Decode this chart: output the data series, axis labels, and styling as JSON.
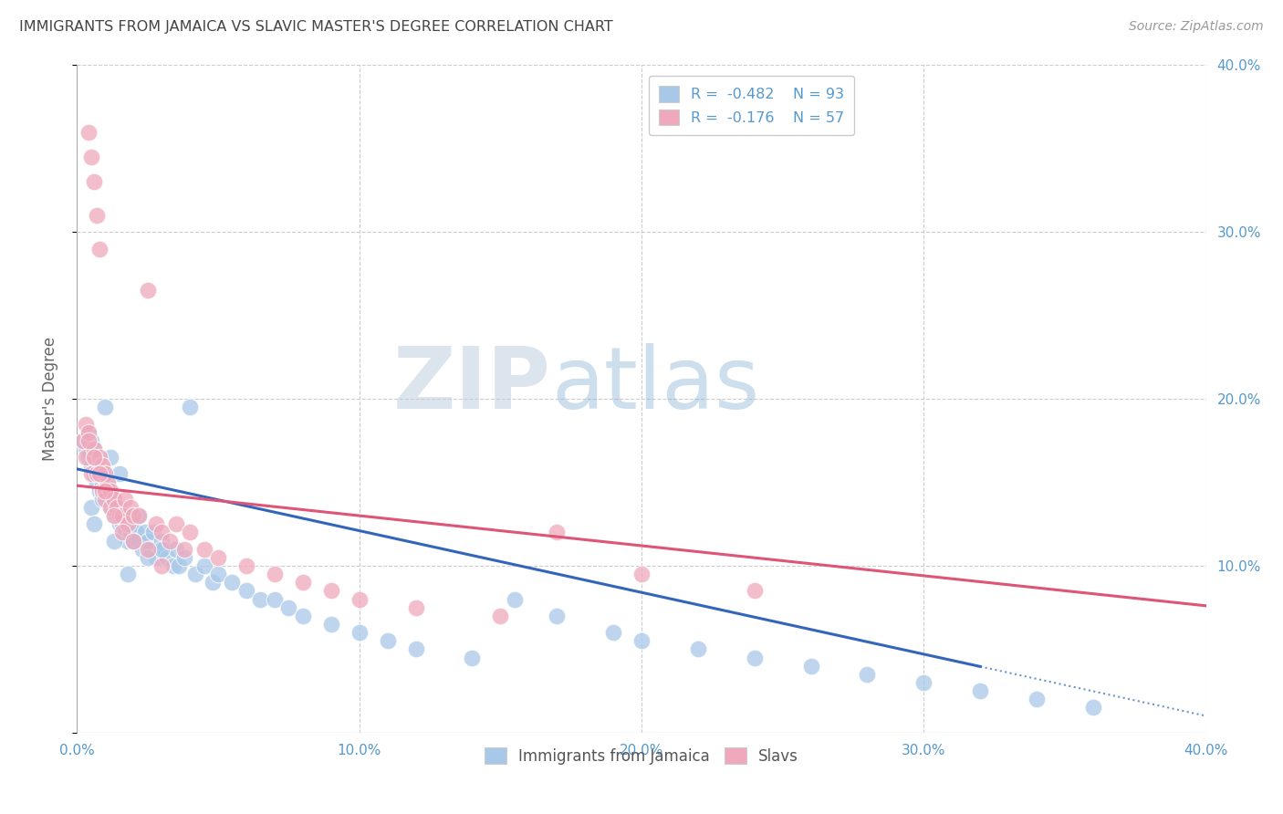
{
  "title": "IMMIGRANTS FROM JAMAICA VS SLAVIC MASTER'S DEGREE CORRELATION CHART",
  "source": "Source: ZipAtlas.com",
  "ylabel": "Master's Degree",
  "xlim": [
    0.0,
    0.4
  ],
  "ylim": [
    0.0,
    0.4
  ],
  "watermark_zip": "ZIP",
  "watermark_atlas": "atlas",
  "blue_color": "#a8c8e8",
  "pink_color": "#f0a8bc",
  "line_blue": "#3366bb",
  "line_pink": "#dd5577",
  "axis_color": "#5599cc",
  "title_color": "#444444",
  "source_color": "#999999",
  "ylabel_color": "#666666",
  "blue_line_intercept": 0.158,
  "blue_line_slope": -0.37,
  "pink_line_intercept": 0.148,
  "pink_line_slope": -0.18,
  "blue_scatter_x": [
    0.002,
    0.003,
    0.004,
    0.004,
    0.005,
    0.005,
    0.006,
    0.006,
    0.006,
    0.007,
    0.007,
    0.007,
    0.008,
    0.008,
    0.009,
    0.009,
    0.01,
    0.01,
    0.01,
    0.011,
    0.011,
    0.012,
    0.012,
    0.013,
    0.013,
    0.014,
    0.014,
    0.015,
    0.015,
    0.016,
    0.016,
    0.017,
    0.017,
    0.018,
    0.018,
    0.019,
    0.02,
    0.02,
    0.021,
    0.022,
    0.022,
    0.023,
    0.024,
    0.025,
    0.026,
    0.027,
    0.028,
    0.03,
    0.031,
    0.032,
    0.034,
    0.035,
    0.036,
    0.038,
    0.04,
    0.042,
    0.045,
    0.048,
    0.05,
    0.055,
    0.06,
    0.065,
    0.07,
    0.075,
    0.08,
    0.09,
    0.1,
    0.11,
    0.12,
    0.14,
    0.155,
    0.17,
    0.19,
    0.2,
    0.22,
    0.24,
    0.26,
    0.28,
    0.3,
    0.32,
    0.34,
    0.36,
    0.008,
    0.01,
    0.012,
    0.015,
    0.018,
    0.02,
    0.025,
    0.03,
    0.005,
    0.006,
    0.009,
    0.013
  ],
  "blue_scatter_y": [
    0.175,
    0.17,
    0.165,
    0.18,
    0.16,
    0.175,
    0.155,
    0.165,
    0.17,
    0.16,
    0.15,
    0.155,
    0.145,
    0.16,
    0.15,
    0.145,
    0.14,
    0.155,
    0.145,
    0.15,
    0.14,
    0.135,
    0.145,
    0.13,
    0.14,
    0.135,
    0.13,
    0.125,
    0.135,
    0.13,
    0.125,
    0.12,
    0.13,
    0.125,
    0.115,
    0.12,
    0.115,
    0.125,
    0.12,
    0.115,
    0.13,
    0.11,
    0.12,
    0.115,
    0.11,
    0.12,
    0.105,
    0.115,
    0.11,
    0.105,
    0.1,
    0.11,
    0.1,
    0.105,
    0.195,
    0.095,
    0.1,
    0.09,
    0.095,
    0.09,
    0.085,
    0.08,
    0.08,
    0.075,
    0.07,
    0.065,
    0.06,
    0.055,
    0.05,
    0.045,
    0.08,
    0.07,
    0.06,
    0.055,
    0.05,
    0.045,
    0.04,
    0.035,
    0.03,
    0.025,
    0.02,
    0.015,
    0.155,
    0.195,
    0.165,
    0.155,
    0.095,
    0.115,
    0.105,
    0.11,
    0.135,
    0.125,
    0.14,
    0.115
  ],
  "pink_scatter_x": [
    0.002,
    0.003,
    0.003,
    0.004,
    0.004,
    0.005,
    0.005,
    0.006,
    0.006,
    0.007,
    0.007,
    0.008,
    0.008,
    0.009,
    0.009,
    0.01,
    0.01,
    0.011,
    0.012,
    0.012,
    0.013,
    0.014,
    0.015,
    0.016,
    0.017,
    0.018,
    0.019,
    0.02,
    0.022,
    0.025,
    0.028,
    0.03,
    0.033,
    0.035,
    0.038,
    0.04,
    0.045,
    0.05,
    0.06,
    0.07,
    0.08,
    0.09,
    0.1,
    0.12,
    0.15,
    0.17,
    0.2,
    0.24,
    0.004,
    0.006,
    0.008,
    0.01,
    0.013,
    0.016,
    0.02,
    0.025,
    0.03
  ],
  "pink_scatter_y": [
    0.175,
    0.185,
    0.165,
    0.18,
    0.36,
    0.155,
    0.345,
    0.33,
    0.17,
    0.31,
    0.155,
    0.29,
    0.165,
    0.16,
    0.145,
    0.155,
    0.14,
    0.15,
    0.135,
    0.145,
    0.14,
    0.135,
    0.13,
    0.13,
    0.14,
    0.125,
    0.135,
    0.13,
    0.13,
    0.265,
    0.125,
    0.12,
    0.115,
    0.125,
    0.11,
    0.12,
    0.11,
    0.105,
    0.1,
    0.095,
    0.09,
    0.085,
    0.08,
    0.075,
    0.07,
    0.12,
    0.095,
    0.085,
    0.175,
    0.165,
    0.155,
    0.145,
    0.13,
    0.12,
    0.115,
    0.11,
    0.1
  ]
}
